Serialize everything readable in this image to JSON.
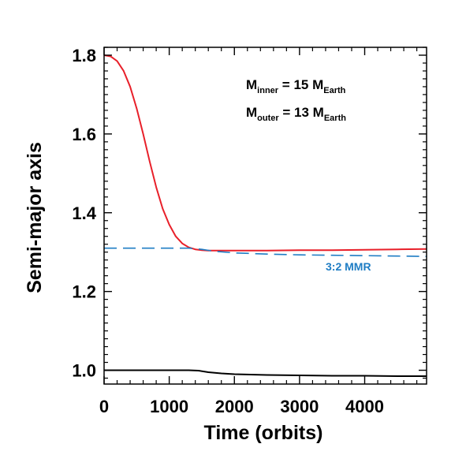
{
  "chart_data": {
    "type": "line",
    "title": "",
    "xlabel": "Time (orbits)",
    "ylabel": "Semi-major axis",
    "xlim": [
      0,
      4950
    ],
    "ylim": [
      0.965,
      1.82
    ],
    "x_ticks": [
      0,
      1000,
      2000,
      3000,
      4000
    ],
    "x_tick_labels": [
      "0",
      "1000",
      "2000",
      "3000",
      "4000"
    ],
    "y_ticks": [
      1.0,
      1.2,
      1.4,
      1.6,
      1.8
    ],
    "y_tick_labels": [
      "1.0",
      "1.2",
      "1.4",
      "1.6",
      "1.8"
    ],
    "grid": false,
    "colors": {
      "outer": "#e8202a",
      "inner": "#000000",
      "mmr": "#1f7dc4"
    },
    "series": [
      {
        "key": "outer",
        "x": [
          0,
          100,
          200,
          300,
          400,
          500,
          600,
          700,
          800,
          900,
          1000,
          1100,
          1200,
          1300,
          1400,
          1500,
          1600,
          1800,
          2000,
          2500,
          3000,
          3500,
          4000,
          4500,
          4950
        ],
        "y": [
          1.8,
          1.797,
          1.785,
          1.76,
          1.72,
          1.665,
          1.6,
          1.53,
          1.465,
          1.41,
          1.37,
          1.34,
          1.322,
          1.312,
          1.307,
          1.305,
          1.304,
          1.304,
          1.304,
          1.304,
          1.305,
          1.305,
          1.306,
          1.307,
          1.308
        ]
      },
      {
        "key": "inner",
        "x": [
          0,
          500,
          1000,
          1300,
          1450,
          1600,
          1800,
          2000,
          2500,
          3000,
          3500,
          4000,
          4500,
          4950
        ],
        "y": [
          1.0,
          1.0,
          1.0,
          1.0,
          0.999,
          0.995,
          0.992,
          0.99,
          0.988,
          0.987,
          0.986,
          0.986,
          0.985,
          0.985
        ]
      },
      {
        "key": "mmr",
        "dashed": true,
        "x": [
          0,
          500,
          1000,
          1300,
          1500,
          1700,
          2000,
          2500,
          3000,
          3500,
          4000,
          4500,
          4950
        ],
        "y": [
          1.31,
          1.31,
          1.31,
          1.31,
          1.307,
          1.302,
          1.298,
          1.295,
          1.293,
          1.292,
          1.291,
          1.29,
          1.289
        ]
      }
    ],
    "annotations": {
      "inner_mass": {
        "prefix": "M",
        "sub": "inner",
        "mid": " = 15 M",
        "sub2": "Earth"
      },
      "outer_mass": {
        "prefix": "M",
        "sub": "outer",
        "mid": " = 13 M",
        "sub2": "Earth"
      },
      "mmr_label": "3:2 MMR"
    }
  }
}
